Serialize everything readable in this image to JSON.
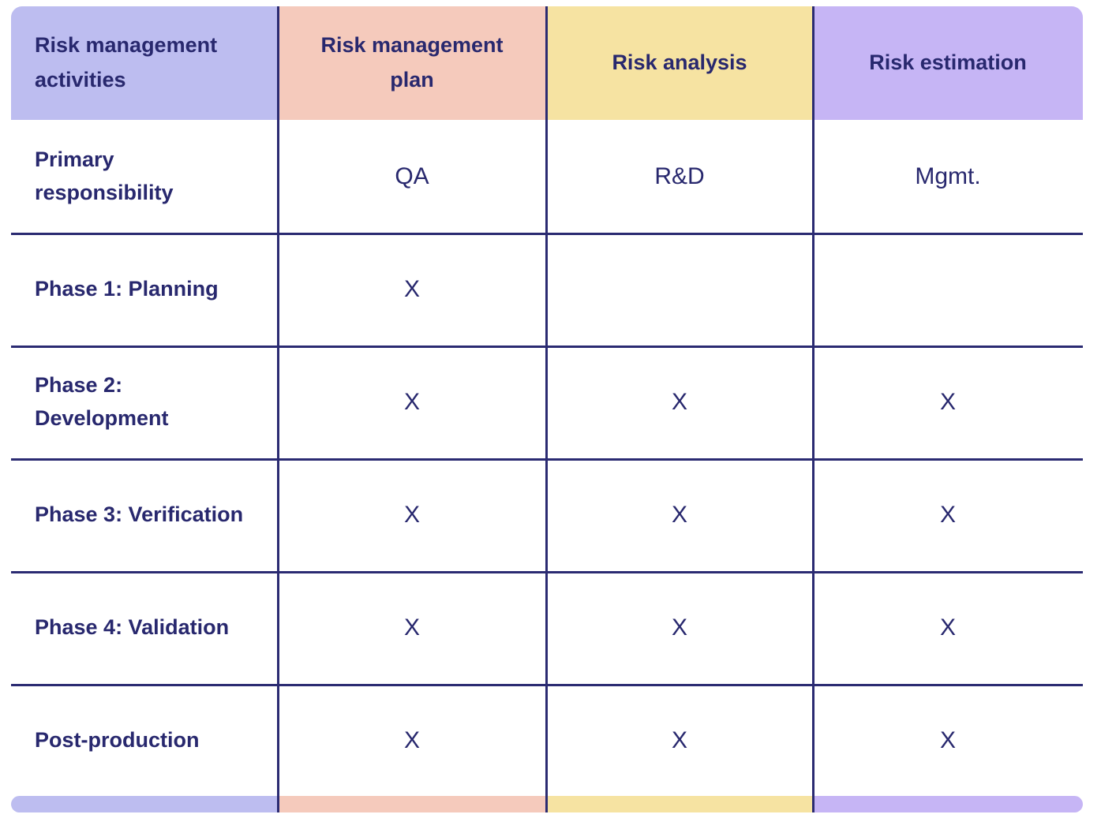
{
  "chart_data": {
    "type": "table",
    "columns": [
      "Risk management activities",
      "Risk management plan",
      "Risk analysis",
      "Risk estimation"
    ],
    "rows": [
      [
        "Primary responsibility",
        "QA",
        "R&D",
        "Mgmt."
      ],
      [
        "Phase 1: Planning",
        "X",
        "",
        ""
      ],
      [
        "Phase 2: Development",
        "X",
        "X",
        "X"
      ],
      [
        "Phase 3: Verification",
        "X",
        "X",
        "X"
      ],
      [
        "Phase 4: Validation",
        "X",
        "X",
        "X"
      ],
      [
        "Post-production",
        "X",
        "X",
        "X"
      ]
    ],
    "layout_hints": {
      "header_fill_colors": [
        "#bdbdf0",
        "#f5cabc",
        "#f6e3a2",
        "#c6b5f5"
      ],
      "grid": "on"
    }
  },
  "table": {
    "text_color": "#28286e",
    "border_color": "#2b2b72",
    "columns": [
      {
        "label": "Risk management activities",
        "color": "#bdbdf0"
      },
      {
        "label": "Risk management plan",
        "color": "#f5cabc"
      },
      {
        "label": "Risk analysis",
        "color": "#f6e3a2"
      },
      {
        "label": "Risk estimation",
        "color": "#c6b5f5"
      }
    ],
    "rows": [
      {
        "label": "Primary responsibility",
        "cells": [
          "QA",
          "R&D",
          "Mgmt."
        ]
      },
      {
        "label": "Phase 1: Planning",
        "cells": [
          "X",
          "",
          ""
        ]
      },
      {
        "label": "Phase 2: Development",
        "cells": [
          "X",
          "X",
          "X"
        ]
      },
      {
        "label": "Phase 3: Verification",
        "cells": [
          "X",
          "X",
          "X"
        ]
      },
      {
        "label": "Phase 4: Validation",
        "cells": [
          "X",
          "X",
          "X"
        ]
      },
      {
        "label": "Post-production",
        "cells": [
          "X",
          "X",
          "X"
        ]
      }
    ]
  }
}
